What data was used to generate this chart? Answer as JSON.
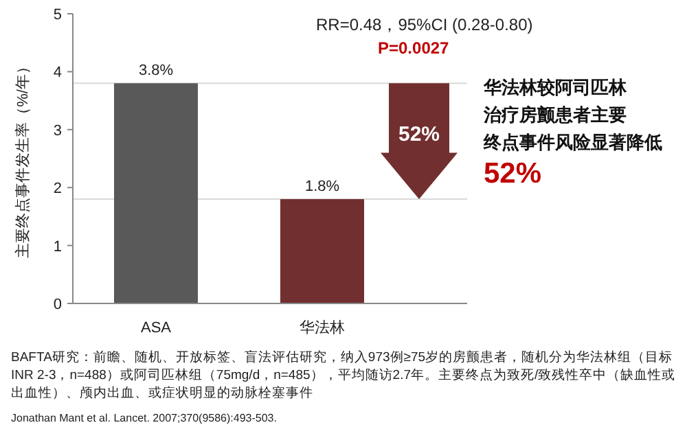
{
  "chart_data": {
    "type": "bar",
    "ylabel": "主要终点事件发生率（%/年）",
    "categories": [
      "ASA",
      "华法林"
    ],
    "values": [
      3.8,
      1.8
    ],
    "colors": [
      "#595959",
      "#722f2f"
    ],
    "value_labels": [
      "3.8%",
      "1.8%"
    ],
    "ylim": [
      0,
      5
    ],
    "yticks": [
      0,
      1,
      2,
      3,
      4,
      5
    ],
    "ref_lines": [
      {
        "axis": "y",
        "value": 3.8,
        "color": "#d9d9d9"
      },
      {
        "axis": "y",
        "value": 1.8,
        "color": "#d9d9d9"
      }
    ],
    "annotations": [
      "RR=0.48，95%CI (0.28-0.80)",
      "P=0.0027",
      "52%",
      "华法林较阿司匹林治疗房颤患者主要终点事件风险显著降低",
      "52%",
      "BAFTA研究：前瞻、随机、开放标签、盲法评估研究，纳入973例≥75岁的房颤患者，随机分为华法林组（目标INR 2-3，n=488）或阿司匹林组（75mg/d，n=485），平均随访2.7年。主要终点为致死/致残性卒中（缺血性或出血性）、颅内出血、或症状明显的动脉栓塞事件",
      "Jonathan Mant et al. Lancet. 2007;370(9586):493-503."
    ]
  }
}
